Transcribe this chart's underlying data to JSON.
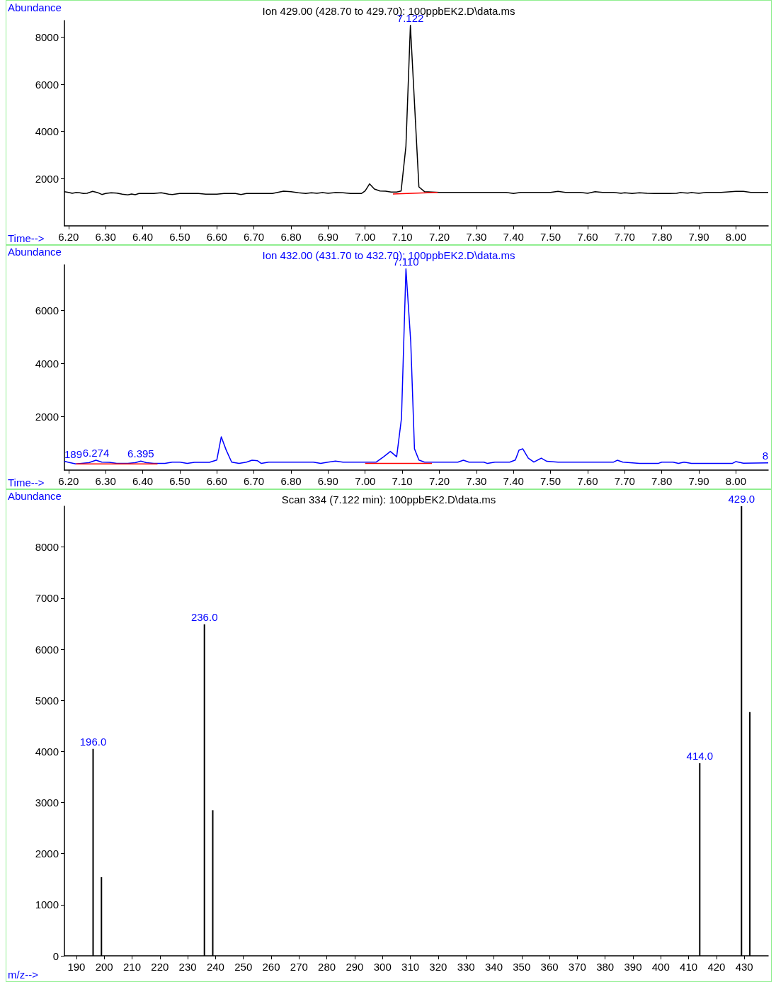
{
  "chart_data": [
    {
      "type": "line",
      "title": "Ion 429.00 (428.70 to 429.70): 100ppbEK2.D\\data.ms",
      "xlabel": "Time-->",
      "ylabel": "Abundance",
      "xlim": [
        6.189,
        8.087
      ],
      "ylim": [
        0,
        8700
      ],
      "xticks": [
        {
          "value": 6.2,
          "label": "6.20"
        },
        {
          "value": 6.3,
          "label": "6.30"
        },
        {
          "value": 6.4,
          "label": "6.40"
        },
        {
          "value": 6.5,
          "label": "6.50"
        },
        {
          "value": 6.6,
          "label": "6.60"
        },
        {
          "value": 6.7,
          "label": "6.70"
        },
        {
          "value": 6.8,
          "label": "6.80"
        },
        {
          "value": 6.9,
          "label": "6.90"
        },
        {
          "value": 7,
          "label": "7.00"
        },
        {
          "value": 7.1,
          "label": "7.10"
        },
        {
          "value": 7.2,
          "label": "7.20"
        },
        {
          "value": 7.3,
          "label": "7.30"
        },
        {
          "value": 7.4,
          "label": "7.40"
        },
        {
          "value": 7.5,
          "label": "7.50"
        },
        {
          "value": 7.6,
          "label": "7.60"
        },
        {
          "value": 7.7,
          "label": "7.70"
        },
        {
          "value": 7.8,
          "label": "7.80"
        },
        {
          "value": 7.9,
          "label": "7.90"
        },
        {
          "value": 8,
          "label": "8.00"
        }
      ],
      "yticks": [
        2000,
        4000,
        6000,
        8000
      ],
      "marker": "none",
      "annotations": [
        {
          "text": "7.122",
          "x": 7.122,
          "y": 8500
        }
      ],
      "series": [
        {
          "color": "#000000",
          "x": [
            6.189,
            6.2,
            6.21,
            6.22,
            6.23,
            6.24,
            6.25,
            6.265,
            6.28,
            6.29,
            6.3,
            6.315,
            6.33,
            6.345,
            6.36,
            6.37,
            6.38,
            6.39,
            6.41,
            6.43,
            6.45,
            6.47,
            6.48,
            6.5,
            6.53,
            6.55,
            6.57,
            6.6,
            6.62,
            6.65,
            6.665,
            6.68,
            6.72,
            6.75,
            6.78,
            6.8,
            6.82,
            6.84,
            6.855,
            6.87,
            6.885,
            6.9,
            6.92,
            6.94,
            6.96,
            6.99,
            7.0,
            7.012,
            7.025,
            7.04,
            7.055,
            7.07,
            7.085,
            7.097,
            7.11,
            7.122,
            7.145,
            7.16,
            7.2,
            7.3,
            7.38,
            7.4,
            7.42,
            7.5,
            7.52,
            7.54,
            7.58,
            7.6,
            7.62,
            7.64,
            7.67,
            7.69,
            7.7,
            7.72,
            7.74,
            7.76,
            7.78,
            7.82,
            7.84,
            7.85,
            7.87,
            7.88,
            7.9,
            7.92,
            7.96,
            8.0,
            8.02,
            8.04,
            8.087
          ],
          "values": [
            1450,
            1420,
            1380,
            1410,
            1400,
            1370,
            1380,
            1460,
            1400,
            1330,
            1370,
            1400,
            1390,
            1340,
            1310,
            1350,
            1320,
            1370,
            1370,
            1370,
            1400,
            1340,
            1330,
            1370,
            1370,
            1370,
            1340,
            1340,
            1370,
            1370,
            1330,
            1370,
            1370,
            1370,
            1470,
            1450,
            1400,
            1370,
            1400,
            1380,
            1410,
            1380,
            1410,
            1400,
            1370,
            1370,
            1480,
            1780,
            1560,
            1480,
            1470,
            1430,
            1430,
            1480,
            3380,
            8500,
            1650,
            1450,
            1420,
            1420,
            1420,
            1370,
            1420,
            1420,
            1460,
            1420,
            1420,
            1380,
            1450,
            1420,
            1420,
            1380,
            1400,
            1370,
            1400,
            1380,
            1370,
            1370,
            1380,
            1410,
            1390,
            1410,
            1380,
            1420,
            1420,
            1460,
            1460,
            1420,
            1420
          ]
        },
        {
          "color": "#ff0000",
          "x": [
            7.075,
            7.195
          ],
          "values": [
            1350,
            1420
          ]
        }
      ]
    },
    {
      "type": "line",
      "title": "Ion 432.00 (431.70 to 432.70): 100ppbEK2.D\\data.ms",
      "xlabel": "Time-->",
      "ylabel": "Abundance",
      "xlim": [
        6.189,
        8.087
      ],
      "ylim": [
        0,
        7700
      ],
      "xticks": [
        {
          "value": 6.2,
          "label": "6.20"
        },
        {
          "value": 6.3,
          "label": "6.30"
        },
        {
          "value": 6.4,
          "label": "6.40"
        },
        {
          "value": 6.5,
          "label": "6.50"
        },
        {
          "value": 6.6,
          "label": "6.60"
        },
        {
          "value": 6.7,
          "label": "6.70"
        },
        {
          "value": 6.8,
          "label": "6.80"
        },
        {
          "value": 6.9,
          "label": "6.90"
        },
        {
          "value": 7,
          "label": "7.00"
        },
        {
          "value": 7.1,
          "label": "7.10"
        },
        {
          "value": 7.2,
          "label": "7.20"
        },
        {
          "value": 7.3,
          "label": "7.30"
        },
        {
          "value": 7.4,
          "label": "7.40"
        },
        {
          "value": 7.5,
          "label": "7.50"
        },
        {
          "value": 7.6,
          "label": "7.60"
        },
        {
          "value": 7.7,
          "label": "7.70"
        },
        {
          "value": 7.8,
          "label": "7.80"
        },
        {
          "value": 7.9,
          "label": "7.90"
        },
        {
          "value": 8,
          "label": "8.00"
        }
      ],
      "yticks": [
        2000,
        4000,
        6000
      ],
      "marker": "none",
      "annotations": [
        {
          "text": "7.110",
          "x": 7.11,
          "y": 7550
        },
        {
          "text": "189",
          "x": 6.189,
          "y": 330
        },
        {
          "text": "6.274",
          "x": 6.274,
          "y": 370
        },
        {
          "text": "6.395",
          "x": 6.395,
          "y": 340
        },
        {
          "text": "8",
          "x": 8.087,
          "y": 270
        }
      ],
      "series": [
        {
          "color": "#0000ff",
          "x": [
            6.189,
            6.2,
            6.22,
            6.24,
            6.255,
            6.274,
            6.29,
            6.31,
            6.33,
            6.36,
            6.38,
            6.395,
            6.41,
            6.43,
            6.46,
            6.48,
            6.5,
            6.52,
            6.54,
            6.58,
            6.6,
            6.612,
            6.625,
            6.64,
            6.66,
            6.68,
            6.695,
            6.71,
            6.72,
            6.74,
            6.8,
            6.86,
            6.88,
            6.9,
            6.92,
            6.94,
            7.0,
            7.03,
            7.05,
            7.068,
            7.085,
            7.098,
            7.11,
            7.123,
            7.133,
            7.145,
            7.16,
            7.2,
            7.25,
            7.265,
            7.28,
            7.32,
            7.33,
            7.35,
            7.39,
            7.405,
            7.415,
            7.425,
            7.44,
            7.455,
            7.475,
            7.49,
            7.52,
            7.6,
            7.67,
            7.68,
            7.695,
            7.74,
            7.79,
            7.8,
            7.83,
            7.845,
            7.86,
            7.88,
            7.95,
            7.99,
            8.0,
            8.02,
            8.087
          ],
          "values": [
            330,
            290,
            230,
            260,
            280,
            370,
            300,
            290,
            250,
            250,
            280,
            340,
            280,
            250,
            250,
            300,
            300,
            250,
            290,
            290,
            380,
            1250,
            760,
            300,
            250,
            300,
            370,
            350,
            250,
            300,
            300,
            300,
            250,
            300,
            340,
            300,
            300,
            300,
            500,
            700,
            500,
            1950,
            7550,
            4800,
            800,
            380,
            300,
            300,
            300,
            370,
            300,
            300,
            250,
            300,
            300,
            380,
            750,
            800,
            450,
            300,
            450,
            330,
            300,
            300,
            300,
            370,
            300,
            250,
            250,
            300,
            300,
            250,
            300,
            250,
            250,
            250,
            320,
            260,
            270
          ]
        },
        {
          "color": "#ff0000",
          "x": [
            6.22,
            6.44
          ],
          "values": [
            230,
            230
          ]
        },
        {
          "color": "#ff0000",
          "x": [
            7.0,
            7.18
          ],
          "values": [
            250,
            250
          ]
        }
      ]
    },
    {
      "type": "bar",
      "title": "Scan 334 (7.122 min): 100ppbEK2.D\\data.ms",
      "xlabel": "m/z-->",
      "ylabel": "Abundance",
      "xlim": [
        185.7,
        438.6
      ],
      "ylim": [
        0,
        8800
      ],
      "xticks": [
        190,
        200,
        210,
        220,
        230,
        240,
        250,
        260,
        270,
        280,
        290,
        300,
        310,
        320,
        330,
        340,
        350,
        360,
        370,
        380,
        390,
        400,
        410,
        420,
        430
      ],
      "yticks": [
        0,
        1000,
        2000,
        3000,
        4000,
        5000,
        6000,
        7000,
        8000
      ],
      "annotations": [
        {
          "text": "196.0",
          "x": 196,
          "y": 4050
        },
        {
          "text": "236.0",
          "x": 236,
          "y": 6490
        },
        {
          "text": "414.0",
          "x": 414,
          "y": 3770
        },
        {
          "text": "429.0",
          "x": 429,
          "y": 8800
        }
      ],
      "series": [
        {
          "color": "#000000",
          "x": [
            196,
            199,
            236,
            239,
            414,
            429,
            432
          ],
          "values": [
            4050,
            1540,
            6490,
            2850,
            3770,
            8800,
            4770
          ]
        }
      ]
    }
  ]
}
